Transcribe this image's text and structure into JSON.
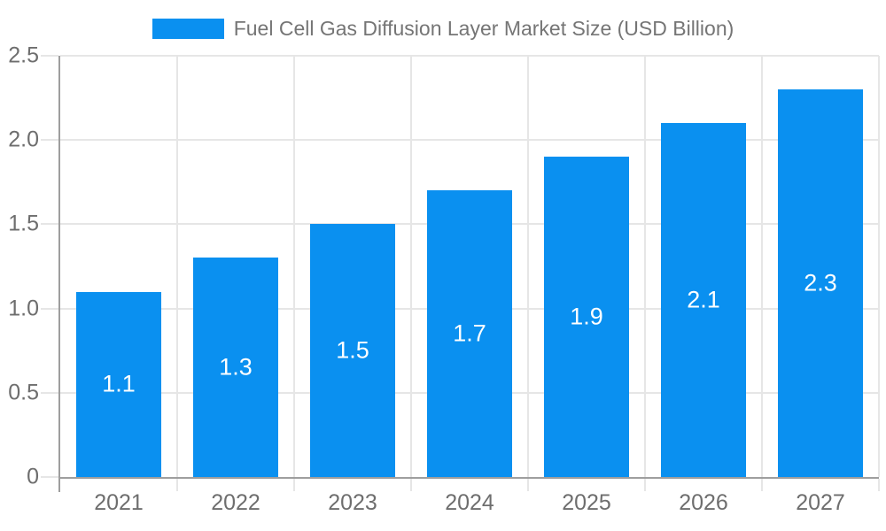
{
  "chart_data": {
    "type": "bar",
    "title": "Fuel Cell Gas Diffusion Layer Market Size (USD Billion)",
    "categories": [
      "2021",
      "2022",
      "2023",
      "2024",
      "2025",
      "2026",
      "2027"
    ],
    "series": [
      {
        "name": "Fuel Cell Gas Diffusion Layer Market Size (USD Billion)",
        "values": [
          1.1,
          1.3,
          1.5,
          1.7,
          1.9,
          2.1,
          2.3
        ]
      }
    ],
    "bar_value_labels": [
      "1.1",
      "1.3",
      "1.5",
      "1.7",
      "1.9",
      "2.1",
      "2.3"
    ],
    "xlabel": "",
    "ylabel": "",
    "ylim": [
      0,
      2.5
    ],
    "yticks": [
      0,
      0.5,
      1,
      1.5,
      2,
      2.5
    ],
    "ytick_labels": [
      "0",
      "0.5",
      "1.0",
      "1.5",
      "2.0",
      "2.5"
    ],
    "grid": true,
    "legend_position": "top-center"
  },
  "colors": {
    "bar": "#0a90f0",
    "grid": "#e6e6e6",
    "axis": "#9e9e9e",
    "tick_label": "#6e6e6e",
    "title": "#757575",
    "bar_label": "#ffffff",
    "background": "#ffffff"
  }
}
